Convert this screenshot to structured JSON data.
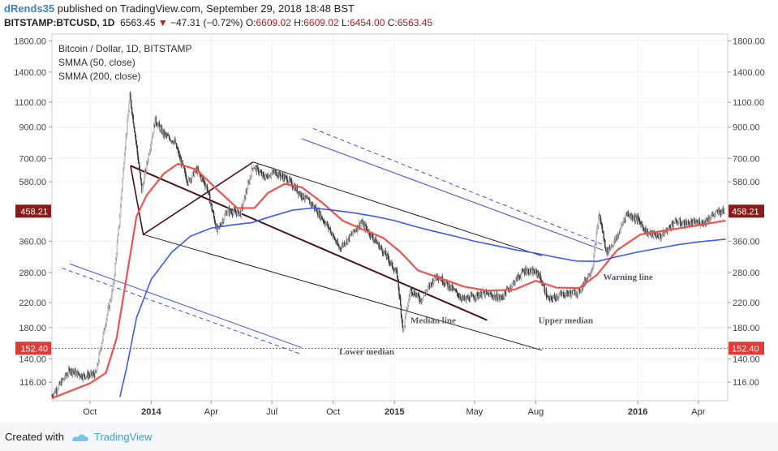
{
  "header": {
    "user": "dRends35",
    "published": "published on TradingView.com, September 29, 2018 18:48 BST",
    "symbol": "BITSTAMP:BTCUSD, 1D",
    "last": "6563.45",
    "change": "−47.31 (−0.72%)",
    "o_label": "O:",
    "o": "6609.02",
    "h_label": "H:",
    "h": "6609.02",
    "l_label": "L:",
    "l": "6454.00",
    "c_label": "C:",
    "c": "6563.45"
  },
  "legend": {
    "title": "Bitcoin / Dollar, 1D, BITSTAMP",
    "ind1": "SMMA (50, close)",
    "ind2": "SMMA (200, close)"
  },
  "footer": {
    "created": "Created with",
    "brand": "TradingView"
  },
  "chart_data": {
    "type": "candlestick",
    "title": "Bitcoin / Dollar, 1D, BITSTAMP",
    "yscale": "log",
    "ylim": [
      100,
      1900
    ],
    "grid": true,
    "legend_position": "top-left",
    "y_ticks": [
      116,
      140,
      180,
      220,
      280,
      360,
      580,
      700,
      900,
      1100,
      1400,
      1800
    ],
    "y_tick_labels": [
      "116.00",
      "140.00",
      "180.00",
      "220.00",
      "280.00",
      "360.00",
      "580.00",
      "700.00",
      "900.00",
      "1100.00",
      "1400.00",
      "1800.00"
    ],
    "x_ticks": [
      {
        "label": "Oct",
        "date": "2013-10-01",
        "bold": false
      },
      {
        "label": "2014",
        "date": "2014-01-01",
        "bold": true
      },
      {
        "label": "Apr",
        "date": "2014-04-01",
        "bold": false
      },
      {
        "label": "Jul",
        "date": "2014-07-01",
        "bold": false
      },
      {
        "label": "Oct",
        "date": "2014-10-01",
        "bold": false
      },
      {
        "label": "2015",
        "date": "2015-01-01",
        "bold": true
      },
      {
        "label": "May",
        "date": "2015-05-01",
        "bold": false
      },
      {
        "label": "Aug",
        "date": "2015-08-01",
        "bold": false
      },
      {
        "label": "2016",
        "date": "2016-01-01",
        "bold": true
      },
      {
        "label": "Apr",
        "date": "2016-04-01",
        "bold": false
      }
    ],
    "x_range": [
      "2013-08-05",
      "2016-05-15"
    ],
    "price_markers": [
      {
        "value": 458.21,
        "label": "458.21",
        "color": "#8b1a1a"
      },
      {
        "value": 152.4,
        "label": "152.40",
        "color": "#e53935"
      }
    ],
    "horizontal_lines": [
      {
        "value": 152.4,
        "color": "#e53935",
        "style": "dotted"
      }
    ],
    "price_path": [
      {
        "date": "2013-08-05",
        "price": 104
      },
      {
        "date": "2013-09-01",
        "price": 128
      },
      {
        "date": "2013-09-20",
        "price": 122
      },
      {
        "date": "2013-10-10",
        "price": 124
      },
      {
        "date": "2013-10-25",
        "price": 190
      },
      {
        "date": "2013-11-05",
        "price": 250
      },
      {
        "date": "2013-11-15",
        "price": 440
      },
      {
        "date": "2013-11-22",
        "price": 740
      },
      {
        "date": "2013-11-30",
        "price": 1150
      },
      {
        "date": "2013-12-07",
        "price": 880
      },
      {
        "date": "2013-12-18",
        "price": 540
      },
      {
        "date": "2013-12-28",
        "price": 720
      },
      {
        "date": "2014-01-07",
        "price": 950
      },
      {
        "date": "2014-01-20",
        "price": 850
      },
      {
        "date": "2014-02-05",
        "price": 800
      },
      {
        "date": "2014-02-25",
        "price": 580
      },
      {
        "date": "2014-03-10",
        "price": 640
      },
      {
        "date": "2014-03-25",
        "price": 560
      },
      {
        "date": "2014-04-10",
        "price": 390
      },
      {
        "date": "2014-04-25",
        "price": 460
      },
      {
        "date": "2014-05-15",
        "price": 450
      },
      {
        "date": "2014-06-03",
        "price": 660
      },
      {
        "date": "2014-06-20",
        "price": 600
      },
      {
        "date": "2014-07-05",
        "price": 630
      },
      {
        "date": "2014-07-25",
        "price": 590
      },
      {
        "date": "2014-08-15",
        "price": 520
      },
      {
        "date": "2014-09-01",
        "price": 480
      },
      {
        "date": "2014-09-25",
        "price": 400
      },
      {
        "date": "2014-10-10",
        "price": 340
      },
      {
        "date": "2014-10-25",
        "price": 370
      },
      {
        "date": "2014-11-12",
        "price": 420
      },
      {
        "date": "2014-11-30",
        "price": 370
      },
      {
        "date": "2014-12-20",
        "price": 320
      },
      {
        "date": "2015-01-05",
        "price": 275
      },
      {
        "date": "2015-01-14",
        "price": 175
      },
      {
        "date": "2015-01-25",
        "price": 245
      },
      {
        "date": "2015-02-10",
        "price": 225
      },
      {
        "date": "2015-03-05",
        "price": 275
      },
      {
        "date": "2015-03-25",
        "price": 250
      },
      {
        "date": "2015-04-15",
        "price": 225
      },
      {
        "date": "2015-05-15",
        "price": 237
      },
      {
        "date": "2015-06-10",
        "price": 228
      },
      {
        "date": "2015-07-01",
        "price": 262
      },
      {
        "date": "2015-07-15",
        "price": 285
      },
      {
        "date": "2015-08-05",
        "price": 278
      },
      {
        "date": "2015-08-20",
        "price": 225
      },
      {
        "date": "2015-09-10",
        "price": 235
      },
      {
        "date": "2015-10-05",
        "price": 240
      },
      {
        "date": "2015-10-25",
        "price": 290
      },
      {
        "date": "2015-11-04",
        "price": 450
      },
      {
        "date": "2015-11-15",
        "price": 330
      },
      {
        "date": "2015-12-01",
        "price": 370
      },
      {
        "date": "2015-12-15",
        "price": 450
      },
      {
        "date": "2016-01-01",
        "price": 430
      },
      {
        "date": "2016-01-15",
        "price": 385
      },
      {
        "date": "2016-02-05",
        "price": 375
      },
      {
        "date": "2016-02-25",
        "price": 420
      },
      {
        "date": "2016-03-15",
        "price": 415
      },
      {
        "date": "2016-04-10",
        "price": 420
      },
      {
        "date": "2016-04-20",
        "price": 440
      },
      {
        "date": "2016-05-01",
        "price": 455
      },
      {
        "date": "2016-05-10",
        "price": 458.21
      }
    ],
    "series": [
      {
        "name": "SMMA (50, close)",
        "color": "#ef5350",
        "points": [
          {
            "date": "2013-08-05",
            "value": 102
          },
          {
            "date": "2013-10-01",
            "value": 115
          },
          {
            "date": "2013-10-25",
            "value": 125
          },
          {
            "date": "2013-11-10",
            "value": 165
          },
          {
            "date": "2013-11-25",
            "value": 270
          },
          {
            "date": "2013-12-10",
            "value": 440
          },
          {
            "date": "2013-12-25",
            "value": 520
          },
          {
            "date": "2014-01-20",
            "value": 620
          },
          {
            "date": "2014-02-10",
            "value": 670
          },
          {
            "date": "2014-03-10",
            "value": 640
          },
          {
            "date": "2014-04-10",
            "value": 545
          },
          {
            "date": "2014-05-10",
            "value": 470
          },
          {
            "date": "2014-06-05",
            "value": 470
          },
          {
            "date": "2014-06-25",
            "value": 530
          },
          {
            "date": "2014-07-20",
            "value": 570
          },
          {
            "date": "2014-08-15",
            "value": 555
          },
          {
            "date": "2014-09-15",
            "value": 490
          },
          {
            "date": "2014-10-15",
            "value": 425
          },
          {
            "date": "2014-11-15",
            "value": 395
          },
          {
            "date": "2014-12-15",
            "value": 370
          },
          {
            "date": "2015-01-10",
            "value": 330
          },
          {
            "date": "2015-02-05",
            "value": 285
          },
          {
            "date": "2015-03-10",
            "value": 268
          },
          {
            "date": "2015-04-15",
            "value": 250
          },
          {
            "date": "2015-05-20",
            "value": 242
          },
          {
            "date": "2015-06-30",
            "value": 244
          },
          {
            "date": "2015-08-01",
            "value": 262
          },
          {
            "date": "2015-09-01",
            "value": 248
          },
          {
            "date": "2015-10-05",
            "value": 247
          },
          {
            "date": "2015-11-01",
            "value": 275
          },
          {
            "date": "2015-12-01",
            "value": 335
          },
          {
            "date": "2016-01-05",
            "value": 380
          },
          {
            "date": "2016-02-10",
            "value": 392
          },
          {
            "date": "2016-03-20",
            "value": 405
          },
          {
            "date": "2016-05-12",
            "value": 425
          }
        ]
      },
      {
        "name": "SMMA (200, close)",
        "color": "#3d5afe",
        "points": [
          {
            "date": "2013-11-15",
            "value": 103
          },
          {
            "date": "2013-11-25",
            "value": 130
          },
          {
            "date": "2013-12-10",
            "value": 195
          },
          {
            "date": "2014-01-01",
            "value": 265
          },
          {
            "date": "2014-02-01",
            "value": 330
          },
          {
            "date": "2014-03-01",
            "value": 375
          },
          {
            "date": "2014-04-01",
            "value": 400
          },
          {
            "date": "2014-05-01",
            "value": 410
          },
          {
            "date": "2014-06-01",
            "value": 418
          },
          {
            "date": "2014-07-01",
            "value": 440
          },
          {
            "date": "2014-08-01",
            "value": 462
          },
          {
            "date": "2014-09-01",
            "value": 470
          },
          {
            "date": "2014-10-01",
            "value": 462
          },
          {
            "date": "2014-11-01",
            "value": 452
          },
          {
            "date": "2014-12-01",
            "value": 440
          },
          {
            "date": "2015-01-01",
            "value": 425
          },
          {
            "date": "2015-02-01",
            "value": 405
          },
          {
            "date": "2015-03-01",
            "value": 390
          },
          {
            "date": "2015-04-01",
            "value": 375
          },
          {
            "date": "2015-05-01",
            "value": 360
          },
          {
            "date": "2015-06-01",
            "value": 348
          },
          {
            "date": "2015-07-01",
            "value": 336
          },
          {
            "date": "2015-08-01",
            "value": 327
          },
          {
            "date": "2015-09-01",
            "value": 316
          },
          {
            "date": "2015-10-01",
            "value": 307
          },
          {
            "date": "2015-11-01",
            "value": 306
          },
          {
            "date": "2015-12-01",
            "value": 318
          },
          {
            "date": "2016-01-01",
            "value": 330
          },
          {
            "date": "2016-02-01",
            "value": 340
          },
          {
            "date": "2016-03-01",
            "value": 350
          },
          {
            "date": "2016-04-01",
            "value": 358
          },
          {
            "date": "2016-05-12",
            "value": 366
          }
        ]
      }
    ],
    "drawings": [
      {
        "name": "pitchfork-handle",
        "color": "#4a1220",
        "points": [
          {
            "date": "2013-12-01",
            "price": 660
          },
          {
            "date": "2013-12-20",
            "price": 380
          },
          {
            "date": "2014-06-03",
            "price": 680
          }
        ]
      },
      {
        "name": "median-line",
        "label": "Median line",
        "color": "#4a1220",
        "p1": {
          "date": "2013-12-01",
          "price": 660
        },
        "p2": {
          "date": "2015-05-20",
          "price": 191
        }
      },
      {
        "name": "lower-median",
        "label": "Lower median",
        "color": "#222222",
        "p1": {
          "date": "2013-12-20",
          "price": 380
        },
        "p2": {
          "date": "2015-08-10",
          "price": 150
        }
      },
      {
        "name": "upper-median",
        "label": "Upper median",
        "color": "#222222",
        "p1": {
          "date": "2014-06-03",
          "price": 680
        },
        "p2": {
          "date": "2015-08-10",
          "price": 320
        }
      },
      {
        "name": "warning-line-upper",
        "label": "Warning line",
        "color": "#3d4df0",
        "p1": {
          "date": "2014-08-15",
          "price": 820
        },
        "p2": {
          "date": "2015-11-10",
          "price": 335
        }
      },
      {
        "name": "warning-line-upper-dashed",
        "color": "#3d4df0",
        "dashed": true,
        "p1": {
          "date": "2014-09-01",
          "price": 890
        },
        "p2": {
          "date": "2015-11-10",
          "price": 350
        }
      },
      {
        "name": "warning-line-lower",
        "color": "#3d4df0",
        "p1": {
          "date": "2013-09-01",
          "price": 300
        },
        "p2": {
          "date": "2014-08-15",
          "price": 153
        }
      },
      {
        "name": "warning-line-lower-dashed",
        "color": "#3d4df0",
        "dashed": true,
        "p1": {
          "date": "2013-08-20",
          "price": 290
        },
        "p2": {
          "date": "2014-08-15",
          "price": 145
        }
      }
    ],
    "annotations": [
      {
        "text": "Median line",
        "date": "2015-01-25",
        "price": 186
      },
      {
        "text": "Lower median",
        "date": "2014-10-10",
        "price": 145
      },
      {
        "text": "Upper median",
        "date": "2015-08-05",
        "price": 186
      },
      {
        "text": "Warning line",
        "date": "2015-11-10",
        "price": 264
      }
    ]
  }
}
